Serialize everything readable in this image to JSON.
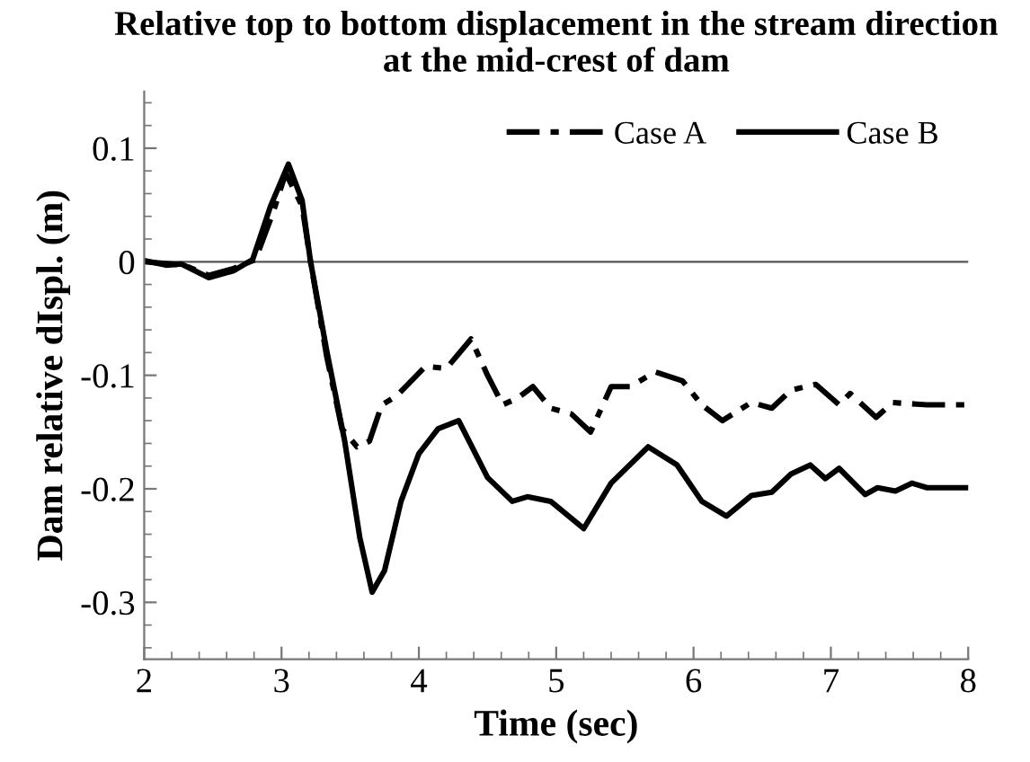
{
  "chart_data": {
    "type": "line",
    "title": "Relative top to bottom displacement in the stream direction\nat the mid-crest of dam",
    "xlabel": "Time (sec)",
    "ylabel": "Dam relative dIspl. (m)",
    "xlim": [
      2,
      8
    ],
    "xticks": [
      2,
      3,
      4,
      5,
      6,
      7,
      8
    ],
    "ylim": [
      -0.35,
      0.15
    ],
    "yticks": [
      {
        "value": -0.3,
        "label": "-0.3"
      },
      {
        "value": -0.2,
        "label": "-0.2"
      },
      {
        "value": -0.1,
        "label": "-0.1"
      },
      0,
      0.1
    ],
    "grid": false,
    "legend": "top right",
    "marker": "none",
    "ref_lines": [
      {
        "axis": "y",
        "value": 0,
        "label": null,
        "color": "#555555",
        "line_style": "solid"
      }
    ],
    "series": [
      {
        "name": "Case A",
        "color": "#000000",
        "line_style": "dashdot",
        "x": [
          2.0,
          2.29,
          2.47,
          2.65,
          2.81,
          2.94,
          3.03,
          3.15,
          3.21,
          3.33,
          3.44,
          3.55,
          3.64,
          3.73,
          3.84,
          4.05,
          4.2,
          4.38,
          4.5,
          4.61,
          4.72,
          4.83,
          4.96,
          5.11,
          5.25,
          5.4,
          5.54,
          5.72,
          5.92,
          6.06,
          6.21,
          6.42,
          6.57,
          6.71,
          6.89,
          7.06,
          7.14,
          7.33,
          7.45,
          7.7,
          8.0
        ],
        "values": [
          0.0,
          -0.003,
          -0.012,
          -0.006,
          0.002,
          0.044,
          0.078,
          0.049,
          0.001,
          -0.084,
          -0.147,
          -0.163,
          -0.158,
          -0.126,
          -0.118,
          -0.092,
          -0.094,
          -0.068,
          -0.1,
          -0.126,
          -0.12,
          -0.11,
          -0.129,
          -0.134,
          -0.15,
          -0.11,
          -0.11,
          -0.097,
          -0.105,
          -0.126,
          -0.14,
          -0.124,
          -0.129,
          -0.113,
          -0.108,
          -0.126,
          -0.116,
          -0.137,
          -0.124,
          -0.126,
          -0.126
        ]
      },
      {
        "name": "Case B",
        "color": "#000000",
        "line_style": "solid",
        "x": [
          2.0,
          2.16,
          2.27,
          2.47,
          2.65,
          2.79,
          2.92,
          3.05,
          3.15,
          3.21,
          3.33,
          3.46,
          3.57,
          3.66,
          3.75,
          3.87,
          4.0,
          4.14,
          4.29,
          4.5,
          4.68,
          4.79,
          4.96,
          5.2,
          5.4,
          5.67,
          5.88,
          6.06,
          6.24,
          6.42,
          6.57,
          6.71,
          6.85,
          6.96,
          7.06,
          7.25,
          7.34,
          7.47,
          7.59,
          7.7,
          8.0
        ],
        "values": [
          0.001,
          -0.003,
          -0.002,
          -0.014,
          -0.008,
          0.002,
          0.049,
          0.086,
          0.054,
          0.001,
          -0.079,
          -0.158,
          -0.243,
          -0.291,
          -0.272,
          -0.211,
          -0.169,
          -0.147,
          -0.14,
          -0.19,
          -0.211,
          -0.207,
          -0.211,
          -0.235,
          -0.195,
          -0.163,
          -0.179,
          -0.211,
          -0.224,
          -0.206,
          -0.203,
          -0.187,
          -0.179,
          -0.191,
          -0.182,
          -0.205,
          -0.199,
          -0.202,
          -0.195,
          -0.199,
          -0.199
        ]
      }
    ]
  }
}
